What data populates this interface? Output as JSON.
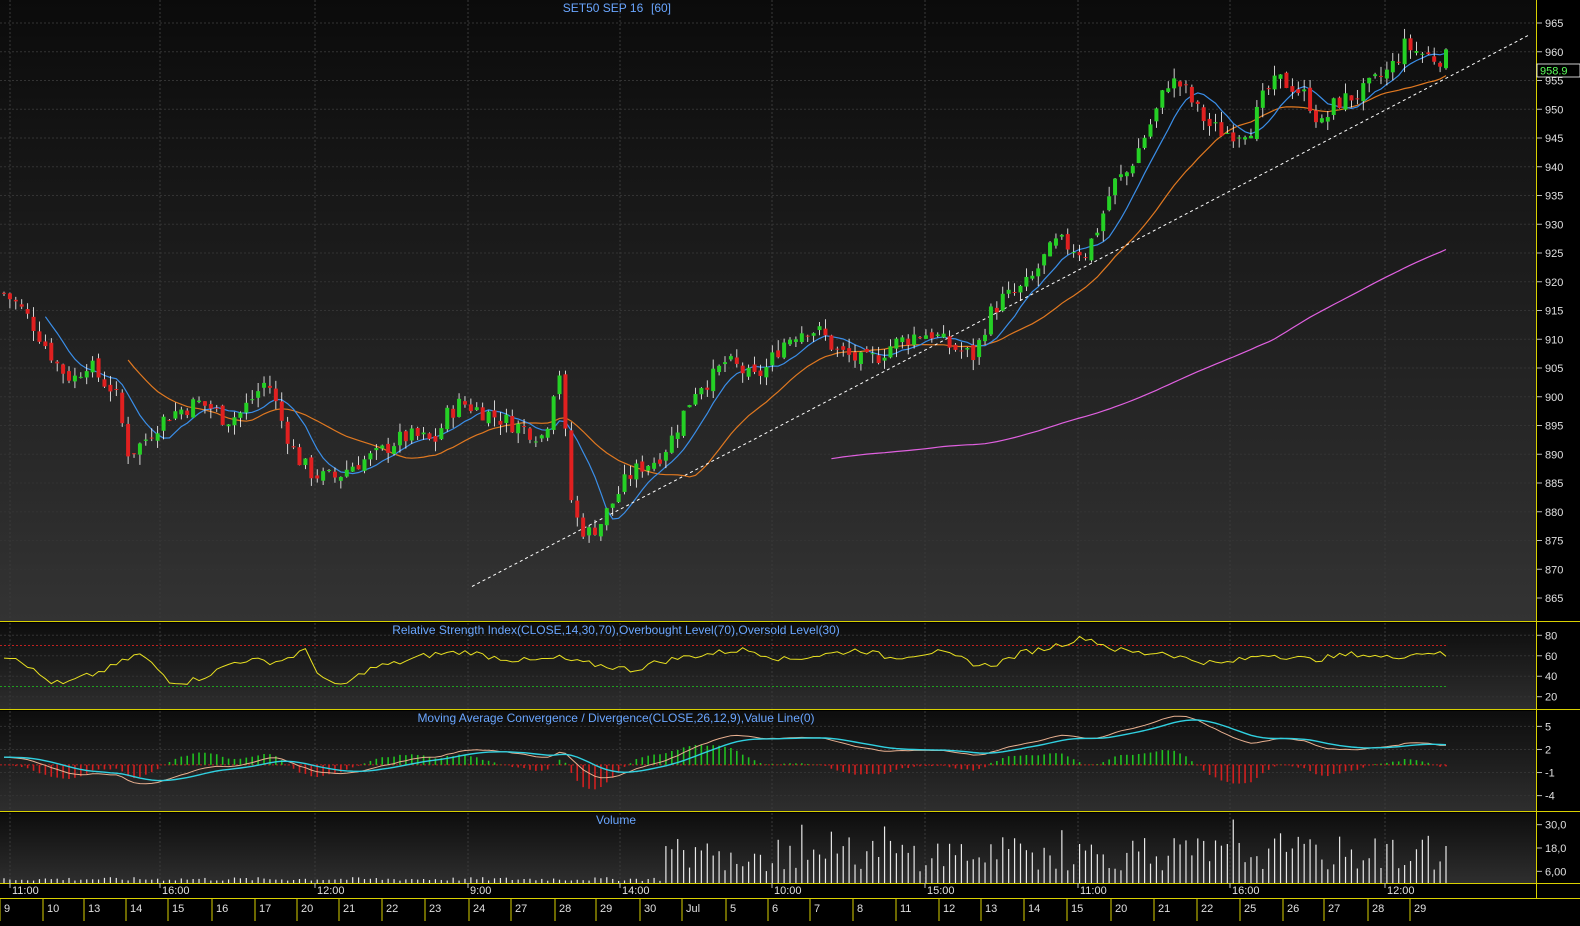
{
  "chart_data": {
    "type": "candlestick",
    "title": "SET50 SEP 16",
    "interval_label": "[60]",
    "last_price": "958.9",
    "price_axis": {
      "ticks": [
        865,
        870,
        875,
        880,
        885,
        890,
        895,
        900,
        905,
        910,
        915,
        920,
        925,
        930,
        935,
        940,
        945,
        950,
        955,
        960,
        965
      ],
      "ylim": [
        861,
        969
      ]
    },
    "x_axis": {
      "time_labels": [
        "11:00",
        "16:00",
        "12:00",
        "9:00",
        "14:00",
        "10:00",
        "15:00",
        "11:00",
        "16:00",
        "12:00"
      ],
      "date_labels": [
        "9",
        "10",
        "13",
        "14",
        "15",
        "16",
        "17",
        "20",
        "21",
        "22",
        "23",
        "24",
        "27",
        "28",
        "29",
        "30",
        "Jul",
        "5",
        "6",
        "7",
        "8",
        "11",
        "12",
        "13",
        "14",
        "15",
        "20",
        "21",
        "22",
        "25",
        "26",
        "27",
        "28",
        "29"
      ]
    },
    "price_series": {
      "close_approx": [
        918,
        916,
        913,
        909,
        905,
        903,
        906,
        903,
        901,
        890,
        892,
        895,
        897,
        898,
        899,
        898,
        896,
        897,
        900,
        903,
        896,
        890,
        887,
        886,
        886,
        888,
        889,
        890,
        892,
        893,
        893,
        892,
        897,
        899,
        898,
        897,
        896,
        895,
        894,
        893,
        906,
        880,
        876,
        878,
        882,
        886,
        888,
        889,
        892,
        897,
        902,
        903,
        906,
        905,
        903,
        905,
        909,
        911,
        912,
        911,
        908,
        907,
        906,
        907,
        909,
        910,
        911,
        911,
        909,
        908,
        907,
        914,
        917,
        918,
        920,
        924,
        927,
        926,
        925,
        930,
        937,
        939,
        944,
        949,
        955,
        954,
        950,
        947,
        946,
        946,
        947,
        953,
        955,
        954,
        952,
        947,
        951,
        952,
        953,
        955,
        957,
        961,
        960,
        959,
        958.9
      ],
      "ma_short_label": "MA short (blue)",
      "ma_mid_label": "MA mid (orange)",
      "ma_long_label": "MA long (magenta)",
      "trendline": {
        "from": {
          "bar": 0.29,
          "price": 867
        },
        "to": {
          "bar": 0.99,
          "price": 963
        }
      }
    },
    "indicators": [
      {
        "name": "Relative Strength Index(CLOSE,14,30,70),Overbought Level(70),Oversold Level(30)",
        "ticks": [
          20,
          40,
          60,
          80
        ],
        "ylim": [
          8,
          92
        ],
        "overbought": 70,
        "oversold": 30,
        "values_approx": [
          60,
          58,
          45,
          35,
          32,
          38,
          42,
          48,
          55,
          62,
          50,
          36,
          34,
          38,
          44,
          52,
          56,
          55,
          54,
          58,
          66,
          42,
          30,
          34,
          45,
          50,
          52,
          56,
          60,
          62,
          63,
          64,
          60,
          58,
          56,
          55,
          56,
          58,
          54,
          52,
          50,
          48,
          46,
          52,
          55,
          58,
          60,
          62,
          64,
          66,
          64,
          60,
          56,
          58,
          60,
          62,
          64,
          66,
          62,
          58,
          60,
          62,
          64,
          60,
          56,
          50,
          52,
          58,
          64,
          66,
          70,
          74,
          78,
          72,
          66,
          64,
          62,
          64,
          60,
          56,
          54,
          52,
          55,
          58,
          62,
          60,
          58,
          56,
          58,
          60,
          62,
          60,
          58,
          60,
          62,
          64,
          60
        ]
      },
      {
        "name": "Moving Average Convergence / Divergence(CLOSE,26,12,9),Value Line(0)",
        "ticks": [
          -4,
          -1,
          2,
          5
        ],
        "ylim": [
          -6,
          7
        ],
        "value_line": 0
      },
      {
        "name": "Volume",
        "ticks": [
          "6,00",
          "18,0",
          "30,0"
        ],
        "ylim": [
          0,
          36
        ]
      }
    ]
  }
}
